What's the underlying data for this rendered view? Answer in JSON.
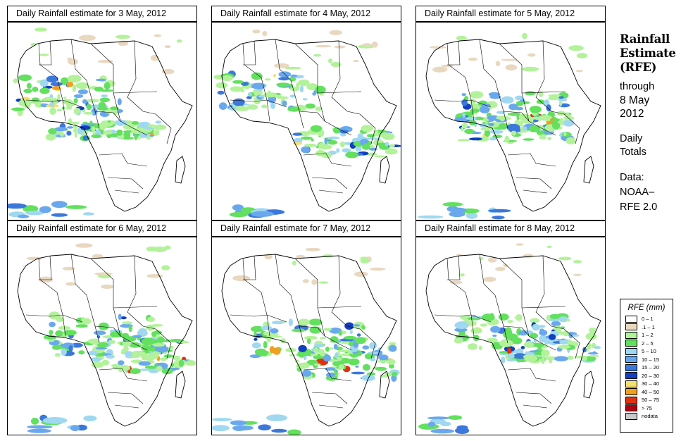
{
  "panels": [
    {
      "title": "Daily Rainfall estimate for  3 May, 2012"
    },
    {
      "title": "Daily Rainfall estimate for  4 May, 2012"
    },
    {
      "title": "Daily Rainfall estimate for  5 May, 2012"
    },
    {
      "title": "Daily Rainfall estimate for  6 May, 2012"
    },
    {
      "title": "Daily Rainfall estimate for  7 May, 2012"
    },
    {
      "title": "Daily Rainfall estimate for  8 May, 2012"
    }
  ],
  "sidebar": {
    "title_line1": "Rainfall",
    "title_line2": "Estimate",
    "title_line3": "(RFE)",
    "through": "through",
    "date_line1": "8 May",
    "date_line2": "2012",
    "daily_line1": "Daily",
    "daily_line2": "Totals",
    "data_label": "Data:",
    "data_line1": "NOAA–",
    "data_line2": "RFE 2.0"
  },
  "legend": {
    "title": "RFE (mm)",
    "items": [
      {
        "label": "0 – 1",
        "color": "#ffffff"
      },
      {
        "label": ".1 – 1",
        "color": "#e9d8c0"
      },
      {
        "label": "1 – 2",
        "color": "#b3f29a"
      },
      {
        "label": "2 – 5",
        "color": "#62e05e"
      },
      {
        "label": "5 – 10",
        "color": "#9fd8f0"
      },
      {
        "label": "10 – 15",
        "color": "#6aa8ee"
      },
      {
        "label": "15 – 20",
        "color": "#3c78dc"
      },
      {
        "label": "20 – 30",
        "color": "#1040c0"
      },
      {
        "label": "30 – 40",
        "color": "#f4e070"
      },
      {
        "label": "40 – 50",
        "color": "#f0a020"
      },
      {
        "label": "50 – 75",
        "color": "#e03010"
      },
      {
        "label": "> 75",
        "color": "#b00010"
      },
      {
        "label": "nodata",
        "color": "#c8c8c8"
      }
    ]
  }
}
